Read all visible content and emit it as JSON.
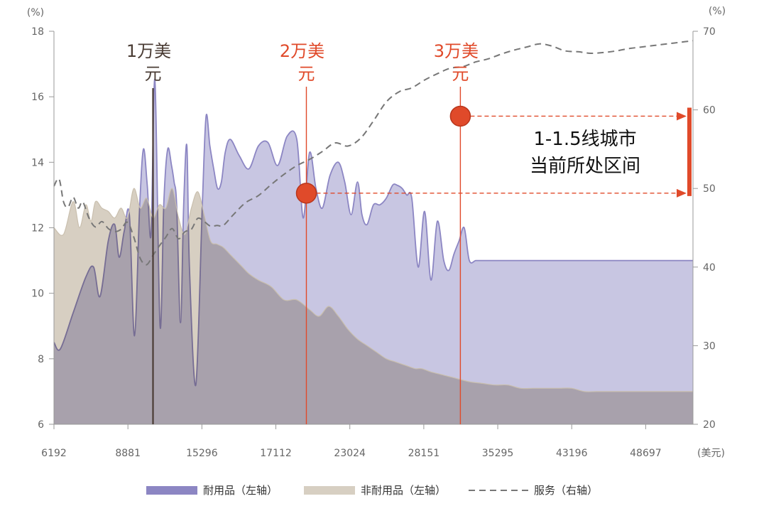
{
  "chart_data": {
    "type": "area",
    "left_axis_unit": "(%)",
    "right_axis_unit": "(%)",
    "x_unit": "(美元)",
    "left_ylim": [
      6,
      18
    ],
    "right_ylim": [
      20,
      70
    ],
    "left_ticks": [
      "6",
      "8",
      "10",
      "12",
      "14",
      "16",
      "18"
    ],
    "right_ticks": [
      "20",
      "30",
      "40",
      "50",
      "60",
      "70"
    ],
    "x_tick_labels": [
      "6192",
      "8881",
      "15296",
      "17112",
      "23024",
      "28151",
      "35295",
      "43196",
      "48697"
    ],
    "x_range": [
      0,
      1
    ],
    "series": [
      {
        "name": "耐用品（左轴）",
        "axis": "left",
        "color": "#8c86c3",
        "fill": "#c8c6e2",
        "x": [
          0.0,
          0.01,
          0.03,
          0.05,
          0.062,
          0.072,
          0.085,
          0.095,
          0.102,
          0.11,
          0.118,
          0.126,
          0.134,
          0.14,
          0.146,
          0.152,
          0.158,
          0.166,
          0.172,
          0.178,
          0.184,
          0.188,
          0.192,
          0.198,
          0.203,
          0.208,
          0.212,
          0.222,
          0.232,
          0.238,
          0.244,
          0.25,
          0.256,
          0.262,
          0.268,
          0.276,
          0.29,
          0.305,
          0.32,
          0.335,
          0.35,
          0.365,
          0.38,
          0.39,
          0.4,
          0.41,
          0.42,
          0.432,
          0.445,
          0.455,
          0.465,
          0.475,
          0.482,
          0.49,
          0.5,
          0.51,
          0.52,
          0.53,
          0.537,
          0.545,
          0.552,
          0.56,
          0.57,
          0.58,
          0.59,
          0.6,
          0.61,
          0.618,
          0.626,
          0.634,
          0.642,
          0.65,
          0.66,
          0.668,
          0.677,
          0.685,
          0.694,
          0.702,
          0.71,
          0.72,
          0.73,
          0.74,
          0.75,
          0.76,
          0.77,
          0.782,
          0.792,
          0.8,
          0.808,
          0.816,
          0.824,
          0.832,
          0.84,
          0.848,
          0.856,
          0.864,
          0.872,
          0.88,
          0.89,
          0.905,
          0.915,
          0.925,
          0.94,
          1.0
        ],
        "values": [
          8.5,
          8.3,
          9.4,
          10.5,
          10.8,
          9.9,
          11.6,
          12.1,
          11.1,
          11.9,
          12.4,
          8.7,
          12.6,
          14.4,
          13.3,
          11.8,
          16.5,
          9.0,
          12.8,
          14.4,
          13.9,
          13.4,
          12.7,
          9.1,
          12.7,
          14.5,
          10.8,
          7.2,
          12.6,
          15.4,
          14.5,
          13.8,
          13.2,
          13.4,
          14.3,
          14.7,
          14.2,
          13.8,
          14.5,
          14.6,
          13.9,
          14.8,
          14.7,
          12.3,
          14.3,
          13.2,
          12.6,
          13.6,
          14.0,
          13.4,
          12.4,
          13.4,
          12.4,
          12.1,
          12.7,
          12.7,
          12.9,
          13.3,
          13.3,
          13.2,
          13.0,
          12.9,
          10.8,
          12.5,
          10.4,
          12.2,
          11.0,
          10.7,
          11.2,
          11.6,
          12.0,
          11.0,
          11.0,
          11.0,
          11.0,
          11.0,
          11.0,
          11.0,
          11.0,
          11.0,
          11.0,
          11.0,
          11.0,
          11.0,
          11.0,
          11.0,
          11.0,
          11.0,
          11.0,
          11.0,
          11.0,
          11.0,
          11.0,
          11.0,
          11.0,
          11.0,
          11.0,
          11.0,
          11.0,
          11.0,
          11.0,
          11.0,
          11.0,
          11.0
        ]
      },
      {
        "name": "非耐用品（左轴）",
        "axis": "left",
        "color": "#c9bfae",
        "fill": "#d7cfc2",
        "x": [
          0.0,
          0.015,
          0.03,
          0.04,
          0.05,
          0.058,
          0.065,
          0.075,
          0.085,
          0.095,
          0.105,
          0.115,
          0.125,
          0.135,
          0.145,
          0.155,
          0.165,
          0.175,
          0.185,
          0.195,
          0.205,
          0.215,
          0.225,
          0.235,
          0.245,
          0.255,
          0.265,
          0.275,
          0.285,
          0.295,
          0.305,
          0.32,
          0.34,
          0.36,
          0.38,
          0.4,
          0.415,
          0.43,
          0.445,
          0.46,
          0.475,
          0.49,
          0.505,
          0.52,
          0.535,
          0.55,
          0.565,
          0.575,
          0.59,
          0.61,
          0.63,
          0.65,
          0.67,
          0.69,
          0.71,
          0.73,
          0.75,
          0.77,
          0.79,
          0.81,
          0.83,
          0.85,
          0.87,
          0.89,
          0.91,
          0.93,
          0.95,
          0.97,
          1.0
        ],
        "values": [
          12.0,
          11.8,
          12.8,
          12.0,
          12.7,
          12.2,
          12.8,
          12.6,
          12.5,
          12.3,
          12.6,
          12.3,
          13.2,
          12.6,
          12.9,
          12.3,
          12.7,
          12.6,
          13.2,
          12.3,
          11.8,
          12.6,
          13.1,
          12.4,
          11.6,
          11.5,
          11.4,
          11.2,
          11.0,
          10.8,
          10.6,
          10.4,
          10.2,
          9.8,
          9.8,
          9.5,
          9.3,
          9.6,
          9.3,
          8.9,
          8.6,
          8.4,
          8.2,
          8.0,
          7.9,
          7.8,
          7.7,
          7.7,
          7.6,
          7.5,
          7.4,
          7.3,
          7.25,
          7.2,
          7.2,
          7.1,
          7.1,
          7.1,
          7.1,
          7.1,
          7.0,
          7.0,
          7.0,
          7.0,
          7.0,
          7.0,
          7.0,
          7.0,
          7.0
        ]
      },
      {
        "name": "服务（右轴）",
        "axis": "right",
        "color": "#777777",
        "x": [
          0.0,
          0.008,
          0.015,
          0.022,
          0.03,
          0.038,
          0.045,
          0.055,
          0.065,
          0.075,
          0.085,
          0.095,
          0.105,
          0.115,
          0.125,
          0.135,
          0.145,
          0.155,
          0.165,
          0.175,
          0.185,
          0.195,
          0.205,
          0.215,
          0.225,
          0.235,
          0.245,
          0.255,
          0.265,
          0.28,
          0.3,
          0.32,
          0.34,
          0.36,
          0.38,
          0.4,
          0.42,
          0.44,
          0.46,
          0.48,
          0.5,
          0.52,
          0.54,
          0.56,
          0.58,
          0.6,
          0.62,
          0.64,
          0.66,
          0.68,
          0.7,
          0.72,
          0.74,
          0.76,
          0.78,
          0.8,
          0.82,
          0.84,
          0.86,
          0.88,
          0.9,
          0.92,
          0.94,
          0.96,
          0.98,
          1.0
        ],
        "values": [
          50.3,
          51.2,
          48.3,
          47.6,
          48.9,
          47.5,
          48.3,
          46.2,
          45.1,
          45.8,
          44.9,
          44.5,
          44.8,
          45.7,
          43.8,
          41.1,
          40.3,
          41.5,
          42.7,
          43.8,
          44.9,
          43.6,
          44.5,
          44.8,
          46.2,
          45.8,
          45.2,
          45.3,
          45.3,
          46.6,
          48.2,
          49.1,
          50.5,
          51.8,
          52.9,
          53.7,
          54.7,
          55.8,
          55.4,
          56.4,
          58.6,
          61.0,
          62.3,
          62.8,
          63.8,
          64.6,
          65.3,
          65.5,
          66.1,
          66.5,
          67.1,
          67.6,
          68.0,
          68.4,
          68.1,
          67.5,
          67.4,
          67.2,
          67.3,
          67.5,
          67.8,
          68.0,
          68.2,
          68.4,
          68.6,
          68.8
        ]
      }
    ],
    "markers": [
      {
        "label": "1万美元",
        "label_line1": "1万美",
        "label_line2": "元",
        "x": 0.155,
        "color": "#4a3c34"
      },
      {
        "label": "2万美元",
        "label_line1": "2万美",
        "label_line2": "元",
        "x": 0.395,
        "color": "#e04a2a"
      },
      {
        "label": "3万美元",
        "label_line1": "3万美",
        "label_line2": "元",
        "x": 0.636,
        "color": "#e04a2a"
      }
    ],
    "points": [
      {
        "x": 0.395,
        "y_right": 49.4,
        "color": "#e04a2a"
      },
      {
        "x": 0.636,
        "y_right": 59.2,
        "color": "#e04a2a"
      }
    ],
    "annotation": {
      "line1": "1-1.5线城市",
      "line2": "当前所处区间",
      "range_right": [
        49.4,
        59.2
      ],
      "color": "#e04a2a"
    },
    "legend": [
      {
        "label": "耐用品（左轴）",
        "kind": "box",
        "color": "#8c86c3"
      },
      {
        "label": "非耐用品（左轴）",
        "kind": "box",
        "color": "#d7cfc2"
      },
      {
        "label": "服务（右轴）",
        "kind": "dash",
        "color": "#777777"
      }
    ]
  }
}
